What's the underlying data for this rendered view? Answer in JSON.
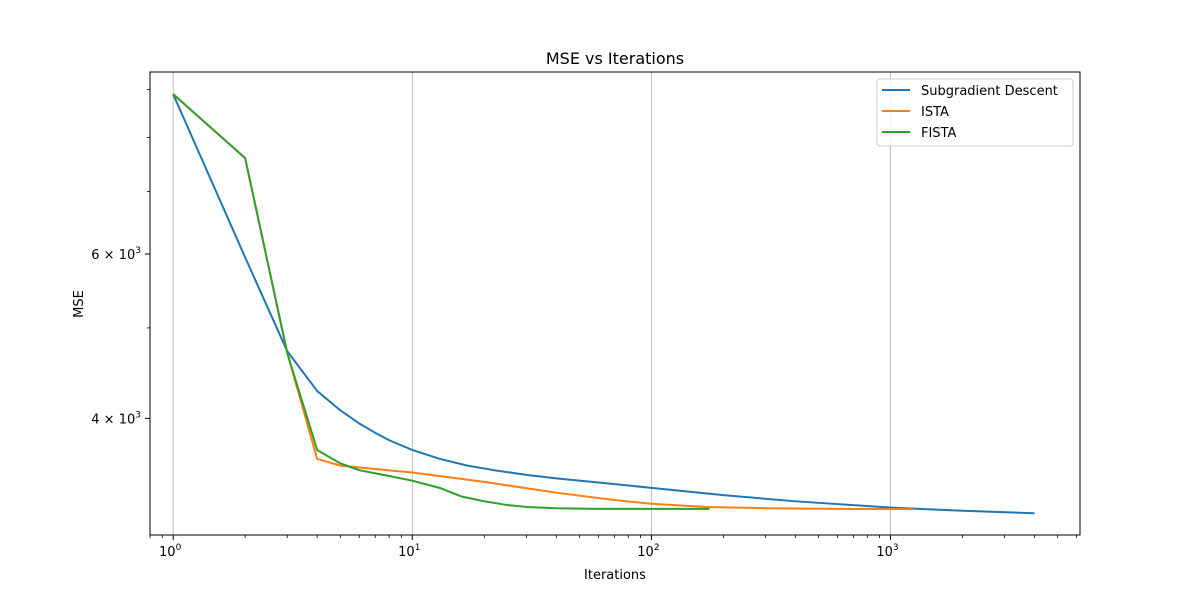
{
  "chart_data": {
    "type": "line",
    "title": "MSE vs Iterations",
    "xlabel": "Iterations",
    "ylabel": "MSE",
    "xscale": "log",
    "yscale": "log",
    "xlim": [
      0.8,
      6200
    ],
    "ylim": [
      3000,
      9400
    ],
    "grid": "x-major",
    "legend_position": "top-right",
    "x_ticks": [
      {
        "value": 1,
        "base": "10",
        "exp": "0"
      },
      {
        "value": 10,
        "base": "10",
        "exp": "1"
      },
      {
        "value": 100,
        "base": "10",
        "exp": "2"
      },
      {
        "value": 1000,
        "base": "10",
        "exp": "3"
      }
    ],
    "y_ticks": [
      {
        "value": 4000,
        "mant": "4",
        "base": "10",
        "exp": "3"
      },
      {
        "value": 6000,
        "mant": "6",
        "base": "10",
        "exp": "3"
      }
    ],
    "y_minor_ticks": [
      5000,
      7000,
      8000,
      9000
    ],
    "series": [
      {
        "name": "Subgradient Descent",
        "color": "#1f77b4",
        "points": [
          [
            1,
            8900
          ],
          [
            2,
            5950
          ],
          [
            3,
            4720
          ],
          [
            4,
            4280
          ],
          [
            5,
            4080
          ],
          [
            6,
            3950
          ],
          [
            7,
            3860
          ],
          [
            8,
            3790
          ],
          [
            10,
            3700
          ],
          [
            13,
            3620
          ],
          [
            17,
            3560
          ],
          [
            22,
            3520
          ],
          [
            30,
            3480
          ],
          [
            40,
            3450
          ],
          [
            60,
            3415
          ],
          [
            100,
            3370
          ],
          [
            200,
            3310
          ],
          [
            400,
            3260
          ],
          [
            1000,
            3210
          ],
          [
            2000,
            3185
          ],
          [
            4000,
            3165
          ]
        ]
      },
      {
        "name": "ISTA",
        "color": "#ff7f0e",
        "points": [
          [
            1,
            8900
          ],
          [
            2,
            7600
          ],
          [
            3,
            4700
          ],
          [
            4,
            3620
          ],
          [
            5,
            3560
          ],
          [
            7,
            3530
          ],
          [
            10,
            3500
          ],
          [
            20,
            3420
          ],
          [
            40,
            3330
          ],
          [
            70,
            3270
          ],
          [
            100,
            3240
          ],
          [
            170,
            3215
          ],
          [
            300,
            3205
          ],
          [
            600,
            3200
          ],
          [
            1240,
            3198
          ]
        ]
      },
      {
        "name": "FISTA",
        "color": "#2ca02c",
        "points": [
          [
            1,
            8900
          ],
          [
            2,
            7600
          ],
          [
            3,
            4700
          ],
          [
            4,
            3700
          ],
          [
            5,
            3580
          ],
          [
            6,
            3520
          ],
          [
            8,
            3470
          ],
          [
            10,
            3430
          ],
          [
            13,
            3370
          ],
          [
            16,
            3300
          ],
          [
            20,
            3260
          ],
          [
            25,
            3230
          ],
          [
            30,
            3215
          ],
          [
            40,
            3205
          ],
          [
            60,
            3200
          ],
          [
            100,
            3200
          ],
          [
            175,
            3200
          ]
        ]
      }
    ]
  }
}
